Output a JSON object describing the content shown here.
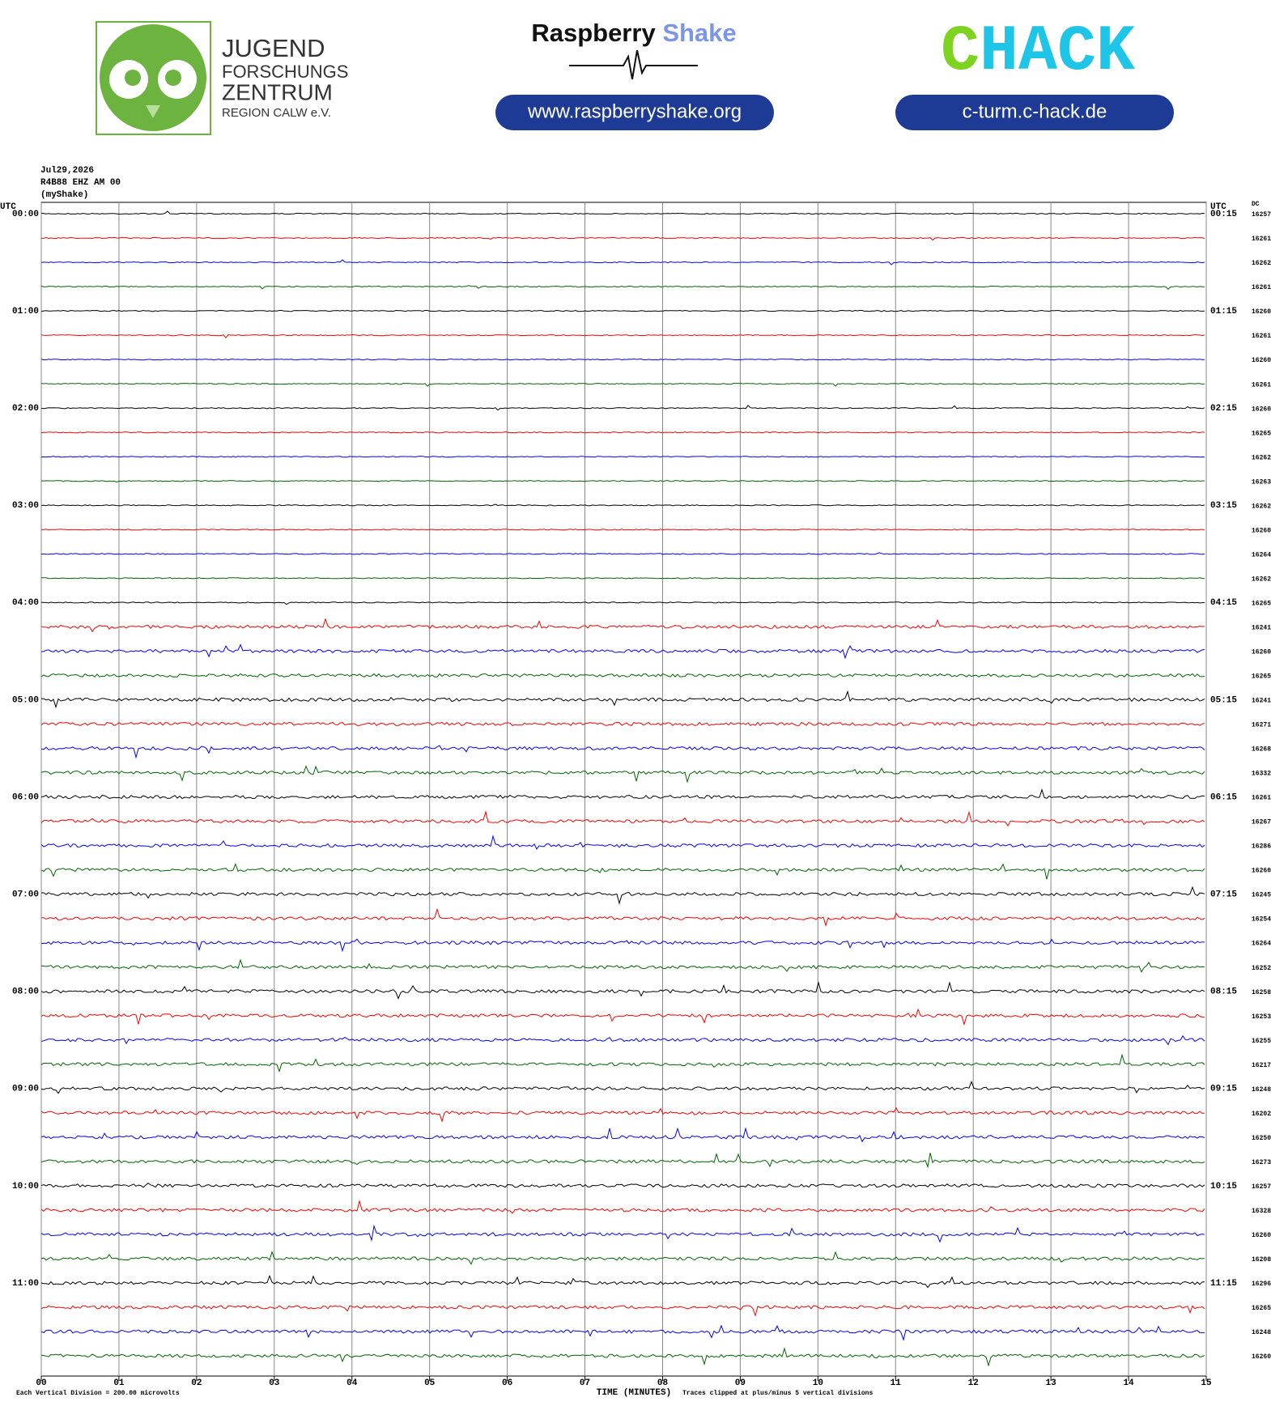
{
  "header": {
    "jfz": [
      "JUGEND",
      "FORSCHUNGS",
      "ZENTRUM",
      "REGION CALW e.V."
    ],
    "shake_word1": "Raspberry",
    "shake_word2": "Shake",
    "shake_url": "www.raspberryshake.org",
    "chack_c": "C",
    "chack_rest": "HACK",
    "chack_url": "c-turm.c-hack.de"
  },
  "chart_data": {
    "type": "helicorder",
    "date": "Jul29,2026",
    "station": "R4B88 EHZ AM 00",
    "source": "(myShake)",
    "left_axis_title": "UTC",
    "right_axis_title": "UTC",
    "dc_title": "DC",
    "left_labels": [
      "00:00",
      "01:00",
      "02:00",
      "03:00",
      "04:00",
      "05:00",
      "06:00",
      "07:00",
      "08:00",
      "09:00",
      "10:00",
      "11:00"
    ],
    "right_labels": [
      "00:15",
      "01:15",
      "02:15",
      "03:15",
      "04:15",
      "05:15",
      "06:15",
      "07:15",
      "08:15",
      "09:15",
      "10:15",
      "11:15"
    ],
    "dc_values": [
      16257,
      16261,
      16262,
      16261,
      16260,
      16261,
      16260,
      16261,
      16260,
      16265,
      16262,
      16263,
      16262,
      16260,
      16264,
      16262,
      16265,
      16241,
      16260,
      16265,
      16241,
      16271,
      16268,
      16332,
      16261,
      16267,
      16286,
      16260,
      16245,
      16254,
      16264,
      16252,
      16258,
      16253,
      16255,
      16217,
      16248,
      16202,
      16250,
      16273,
      16257,
      16328,
      16260,
      16208,
      16296,
      16265,
      16248,
      16260
    ],
    "row_colors": [
      "#000000",
      "#ff0000",
      "#0000ff",
      "#006400"
    ],
    "xlim": [
      0,
      15
    ],
    "xticks": [
      {
        "value": 0,
        "label": "00"
      },
      {
        "value": 1,
        "label": "01"
      },
      {
        "value": 2,
        "label": "02"
      },
      {
        "value": 3,
        "label": "03"
      },
      {
        "value": 4,
        "label": "04"
      },
      {
        "value": 5,
        "label": "05"
      },
      {
        "value": 6,
        "label": "06"
      },
      {
        "value": 7,
        "label": "07"
      },
      {
        "value": 8,
        "label": "08"
      },
      {
        "value": 9,
        "label": "09"
      },
      {
        "value": 10,
        "label": "10"
      },
      {
        "value": 11,
        "label": "11"
      },
      {
        "value": 12,
        "label": "12"
      },
      {
        "value": 13,
        "label": "13"
      },
      {
        "value": 14,
        "label": "14"
      },
      {
        "value": 15,
        "label": "15"
      }
    ],
    "xlabel": "TIME (MINUTES)",
    "scale_note": "Each Vertical Division =  200.00 microvolts",
    "clip_note": "Traces clipped at plus/minus 5 vertical divisions",
    "grid": true
  }
}
